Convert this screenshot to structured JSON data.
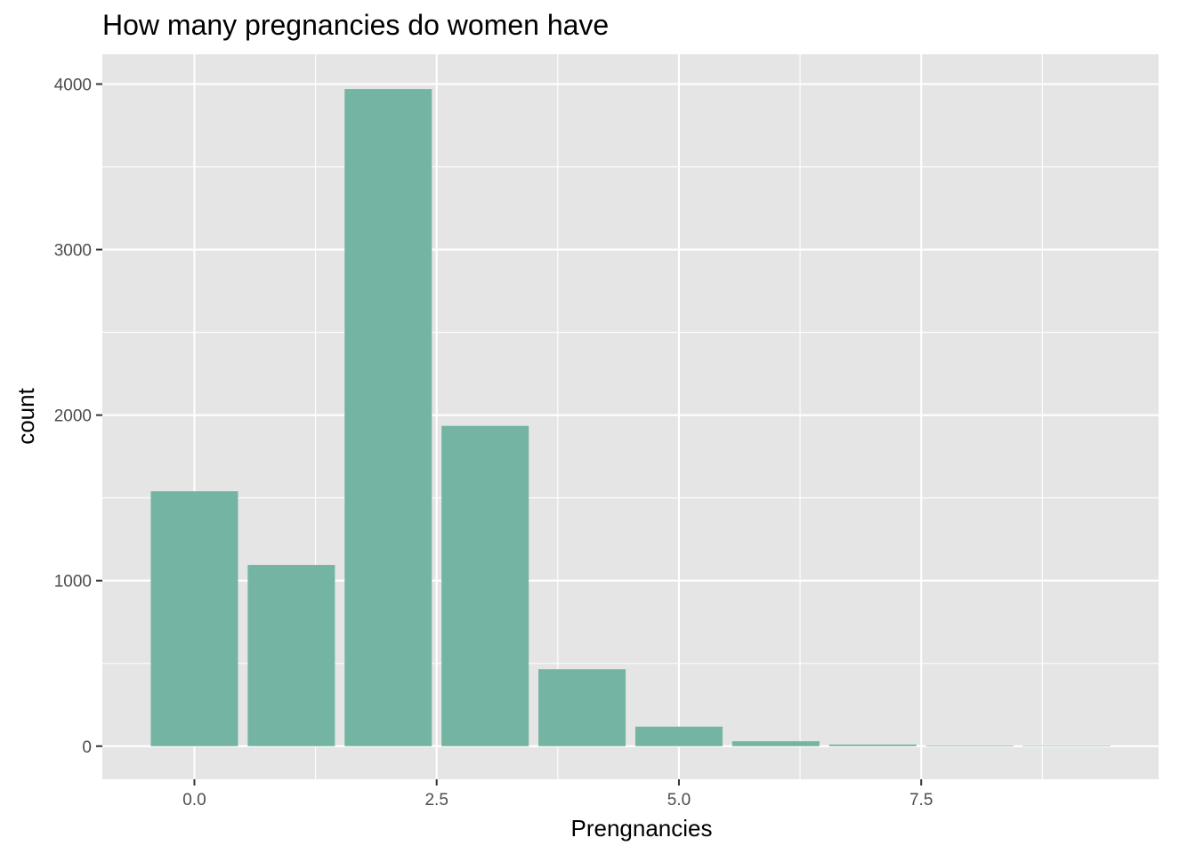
{
  "chart_data": {
    "type": "bar",
    "title": "How many pregnancies do women have",
    "xlabel": "Prengnancies",
    "ylabel": "count",
    "x": [
      0,
      1,
      2,
      3,
      4,
      5,
      6,
      7,
      8,
      9
    ],
    "values": [
      1540,
      1095,
      3970,
      1935,
      465,
      118,
      30,
      10,
      4,
      2
    ],
    "xlim": [
      -0.95,
      9.95
    ],
    "ylim": [
      -200,
      4180
    ],
    "x_ticks": [
      0,
      2.5,
      5,
      7.5
    ],
    "x_tick_labels": [
      "0.0",
      "2.5",
      "5.0",
      "7.5"
    ],
    "y_ticks": [
      0,
      1000,
      2000,
      3000,
      4000
    ],
    "y_tick_labels": [
      "0",
      "1000",
      "2000",
      "3000",
      "4000"
    ],
    "bar_color": "#74b4a2",
    "panel_background": "#e5e5e5",
    "grid": true
  }
}
